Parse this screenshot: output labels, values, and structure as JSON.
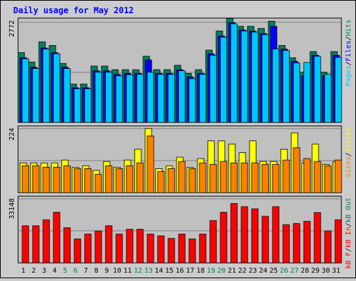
{
  "title": "Daily usage for May 2012",
  "colors": {
    "background": "#cccccc",
    "plot_bg": "#c0c0c0",
    "hits": "#00805c",
    "files": "#0000ff",
    "pages": "#00c8ff",
    "visits": "#ffff00",
    "sites": "#ff8000",
    "kb_in": "#ff0000",
    "title": "#0000ff",
    "weekend_label": "#00805c",
    "weekday_label": "#000000"
  },
  "chart_data": [
    {
      "type": "bar",
      "name": "hits-files-pages",
      "y_max_label": "2772",
      "ylim": [
        0,
        2772
      ],
      "legend": [
        {
          "text": "Pages",
          "color": "#00c8ff"
        },
        {
          "text": "/",
          "color": "#000000"
        },
        {
          "text": "Files",
          "color": "#0000ff"
        },
        {
          "text": "/",
          "color": "#000000"
        },
        {
          "text": "Hits",
          "color": "#00805c"
        }
      ],
      "categories": [
        "1",
        "2",
        "3",
        "4",
        "5",
        "6",
        "7",
        "8",
        "9",
        "10",
        "11",
        "12",
        "13",
        "14",
        "15",
        "16",
        "17",
        "18",
        "19",
        "20",
        "21",
        "22",
        "23",
        "24",
        "25",
        "26",
        "27",
        "28",
        "29",
        "30",
        "31"
      ],
      "series": [
        {
          "name": "Hits",
          "values": [
            1930,
            1670,
            2230,
            2130,
            1630,
            1060,
            1060,
            1560,
            1560,
            1460,
            1460,
            1460,
            1830,
            1460,
            1460,
            1580,
            1360,
            1460,
            2000,
            2530,
            2880,
            2660,
            2660,
            2600,
            2800,
            2130,
            1790,
            1390,
            1960,
            1390,
            1960
          ]
        },
        {
          "name": "Files",
          "values": [
            1790,
            1530,
            2060,
            1930,
            1530,
            960,
            960,
            1430,
            1430,
            1330,
            1360,
            1360,
            1730,
            1360,
            1360,
            1460,
            1260,
            1360,
            1900,
            2390,
            2760,
            2560,
            2530,
            2460,
            2660,
            2030,
            1690,
            1290,
            1860,
            1290,
            1860
          ]
        },
        {
          "name": "Pages",
          "values": [
            1760,
            1490,
            2030,
            1900,
            1490,
            930,
            930,
            1390,
            1390,
            1290,
            1320,
            1330,
            1390,
            1330,
            1330,
            1430,
            1210,
            1330,
            1860,
            2360,
            2730,
            2530,
            2500,
            2430,
            2030,
            1990,
            1650,
            1660,
            1830,
            1330,
            1800
          ]
        }
      ]
    },
    {
      "type": "bar",
      "name": "visits-sites",
      "y_max_label": "224",
      "ylim": [
        0,
        224
      ],
      "legend": [
        {
          "text": "Sites",
          "color": "#ff8000"
        },
        {
          "text": "/",
          "color": "#000000"
        },
        {
          "text": "Visits",
          "color": "#ffff00"
        }
      ],
      "categories": [
        "1",
        "2",
        "3",
        "4",
        "5",
        "6",
        "7",
        "8",
        "9",
        "10",
        "11",
        "12",
        "13",
        "14",
        "15",
        "16",
        "17",
        "18",
        "19",
        "20",
        "21",
        "22",
        "23",
        "24",
        "25",
        "26",
        "27",
        "28",
        "29",
        "30",
        "31"
      ],
      "series": [
        {
          "name": "Visits",
          "values": [
            104,
            104,
            104,
            104,
            114,
            89,
            94,
            78,
            109,
            89,
            114,
            152,
            224,
            84,
            94,
            124,
            89,
            119,
            181,
            181,
            170,
            140,
            181,
            109,
            109,
            152,
            209,
            104,
            170,
            99,
            109
          ]
        },
        {
          "name": "Sites",
          "values": [
            94,
            94,
            89,
            89,
            94,
            84,
            84,
            64,
            94,
            84,
            94,
            104,
            198,
            74,
            84,
            109,
            84,
            104,
            99,
            109,
            104,
            104,
            104,
            99,
            99,
            114,
            157,
            119,
            109,
            94,
            114
          ]
        }
      ]
    },
    {
      "type": "bar",
      "name": "kb-in",
      "y_max_label": "33148",
      "ylim": [
        0,
        33148
      ],
      "legend": [
        {
          "text": "kB F",
          "color": "#ff0000"
        },
        {
          "text": "/",
          "color": "#000000"
        },
        {
          "text": "kB In",
          "color": "#ff0000"
        },
        {
          "text": "/",
          "color": "#000000"
        },
        {
          "text": "kB Out",
          "color": "#00805c"
        }
      ],
      "categories": [
        "1",
        "2",
        "3",
        "4",
        "5",
        "6",
        "7",
        "8",
        "9",
        "10",
        "11",
        "12",
        "13",
        "14",
        "15",
        "16",
        "17",
        "18",
        "19",
        "20",
        "21",
        "22",
        "23",
        "24",
        "25",
        "26",
        "27",
        "28",
        "29",
        "30",
        "31"
      ],
      "series": [
        {
          "name": "kB In",
          "values": [
            19200,
            19200,
            22300,
            26200,
            18200,
            12400,
            14900,
            16500,
            19200,
            14900,
            17400,
            17400,
            14900,
            14000,
            12700,
            14900,
            12400,
            14900,
            21900,
            26200,
            30700,
            29100,
            28000,
            24100,
            29100,
            19800,
            20400,
            21500,
            26000,
            16500,
            22300
          ]
        }
      ]
    }
  ],
  "x_axis": {
    "labels": [
      "1",
      "2",
      "3",
      "4",
      "5",
      "6",
      "7",
      "8",
      "9",
      "10",
      "11",
      "12",
      "13",
      "14",
      "15",
      "16",
      "17",
      "18",
      "19",
      "20",
      "21",
      "22",
      "23",
      "24",
      "25",
      "26",
      "27",
      "28",
      "29",
      "30",
      "31"
    ],
    "weekend_days": [
      "5",
      "6",
      "12",
      "13",
      "19",
      "20",
      "26",
      "27"
    ]
  }
}
